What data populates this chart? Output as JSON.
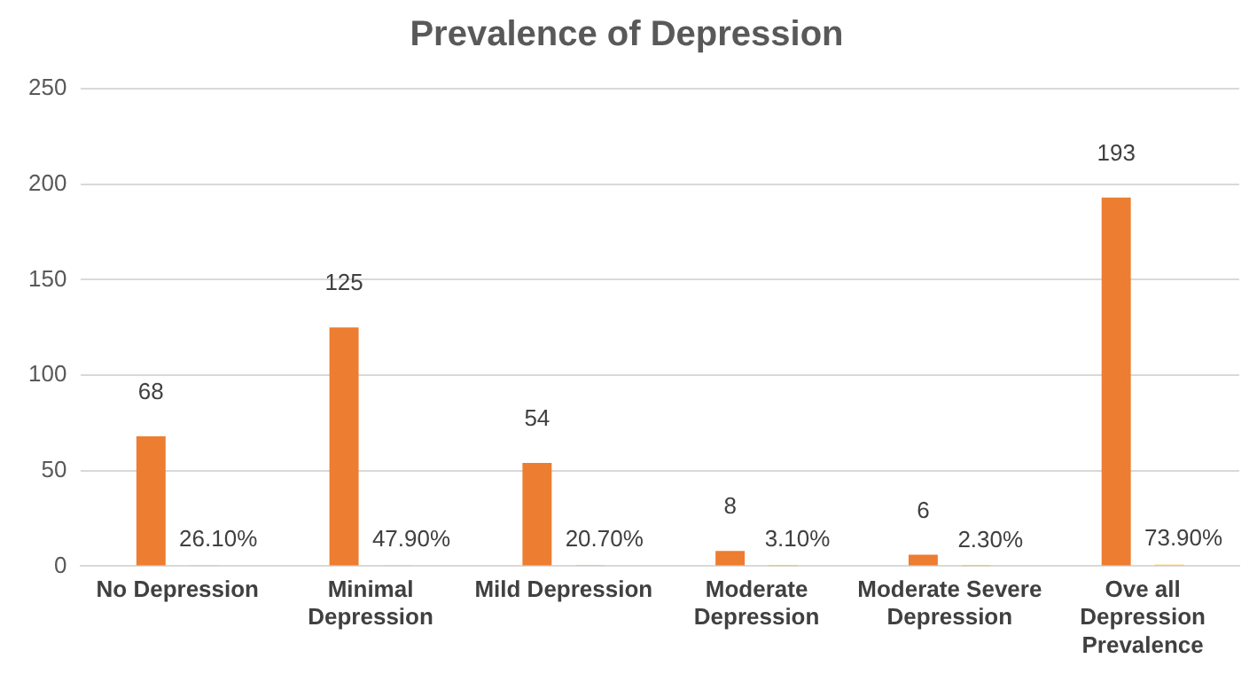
{
  "chart_data": {
    "type": "bar",
    "title": "Prevalence of Depression",
    "categories": [
      "No Depression",
      "Minimal Depression",
      "Mild Depression",
      "Moderate Depression",
      "Moderate Severe Depression",
      "Ove all Depression Prevalence"
    ],
    "series": [
      {
        "color": "#ed7d31",
        "values": [
          68,
          125,
          54,
          8,
          6,
          193
        ],
        "value_labels": [
          "68",
          "125",
          "54",
          "8",
          "6",
          "193"
        ]
      },
      {
        "color": "#ffc000",
        "values": [
          0.261,
          0.479,
          0.207,
          0.031,
          0.023,
          0.739
        ],
        "value_labels": [
          "26.10%",
          "47.90%",
          "20.70%",
          "3.10%",
          "2.30%",
          "73.90%"
        ]
      }
    ],
    "ylim": [
      0,
      250
    ],
    "yticks": [
      0,
      50,
      100,
      150,
      200,
      250
    ],
    "grid": "y"
  }
}
